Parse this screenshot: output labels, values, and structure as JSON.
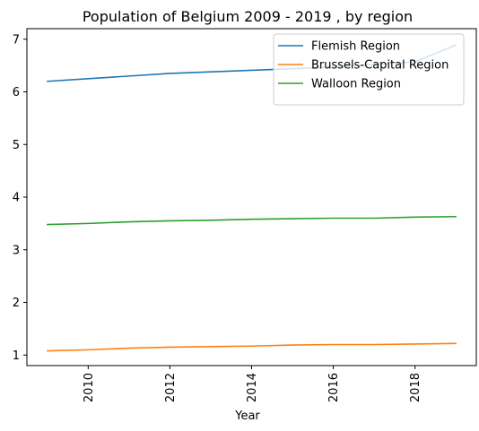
{
  "chart_data": {
    "type": "line",
    "title": "Population of Belgium 2009 - 2019 , by region",
    "xlabel": "Year",
    "ylabel": "",
    "x": [
      2009,
      2010,
      2011,
      2012,
      2013,
      2014,
      2015,
      2016,
      2017,
      2018,
      2019
    ],
    "xlim": [
      2008.5,
      2019.5
    ],
    "ylim": [
      0.8,
      7.2
    ],
    "xticks": [
      2010,
      2012,
      2014,
      2016,
      2018
    ],
    "yticks": [
      1,
      2,
      3,
      4,
      5,
      6,
      7
    ],
    "grid": false,
    "legend_position": "top-right",
    "series": [
      {
        "name": "Flemish Region",
        "color": "#1f77b4",
        "values": [
          6.2,
          6.25,
          6.3,
          6.35,
          6.38,
          6.41,
          6.44,
          6.47,
          6.52,
          6.57,
          6.89
        ]
      },
      {
        "name": "Brussels-Capital Region",
        "color": "#ff7f0e",
        "values": [
          1.08,
          1.1,
          1.13,
          1.15,
          1.16,
          1.17,
          1.19,
          1.2,
          1.2,
          1.21,
          1.22
        ]
      },
      {
        "name": "Walloon Region",
        "color": "#2ca02c",
        "values": [
          3.48,
          3.5,
          3.53,
          3.55,
          3.56,
          3.58,
          3.59,
          3.6,
          3.6,
          3.62,
          3.63
        ]
      }
    ]
  }
}
